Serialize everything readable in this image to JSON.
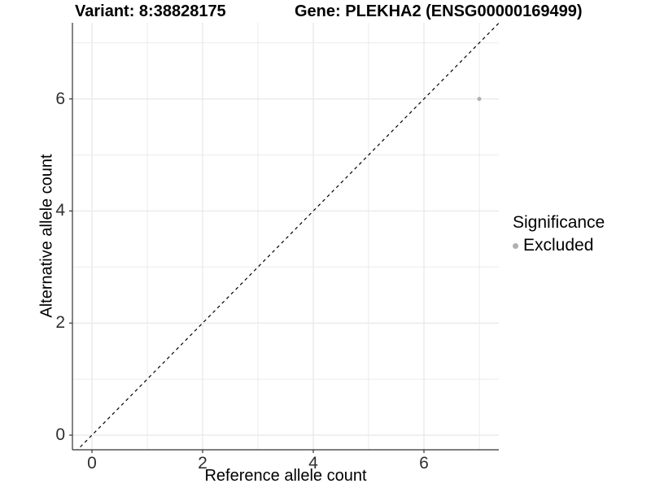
{
  "chart_data": {
    "type": "scatter",
    "title_left": "Variant: 8:38828175",
    "title_right": "Gene: PLEKHA2 (ENSG00000169499)",
    "xlabel": "Reference allele count",
    "ylabel": "Alternative allele count",
    "xlim": [
      -0.26,
      7.36
    ],
    "ylim": [
      -0.26,
      7.36
    ],
    "x_major_ticks": [
      0,
      2,
      4,
      6
    ],
    "y_major_ticks": [
      0,
      2,
      4,
      6
    ],
    "x_minor_gridlines": [
      1,
      3,
      5,
      7
    ],
    "y_minor_gridlines": [
      1,
      3,
      5,
      7
    ],
    "grid": true,
    "legend_position": "right",
    "reference_line": {
      "type": "identity-diagonal",
      "style": "dashed",
      "color": "#000000"
    },
    "series": [
      {
        "name": "Excluded",
        "color": "#b0b0b0",
        "points": [
          {
            "x": 7,
            "y": 6
          }
        ]
      }
    ],
    "legend": {
      "title": "Significance",
      "items": [
        {
          "label": "Excluded",
          "color": "#b0b0b0"
        }
      ]
    },
    "colors": {
      "grid": "#ebebeb",
      "axis": "#333333",
      "tick_text": "#303030",
      "point": "#b0b0b0",
      "background": "#ffffff"
    }
  }
}
